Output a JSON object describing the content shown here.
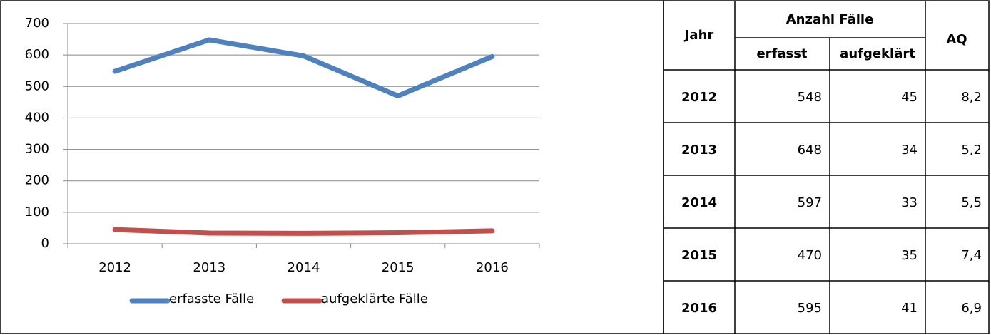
{
  "chart_data": {
    "type": "line",
    "categories": [
      "2012",
      "2013",
      "2014",
      "2015",
      "2016"
    ],
    "series": [
      {
        "name": "erfasste Fälle",
        "color": "#4f81bd",
        "values": [
          548,
          648,
          597,
          470,
          595
        ]
      },
      {
        "name": "aufgeklärte Fälle",
        "color": "#c0504d",
        "values": [
          45,
          34,
          33,
          35,
          41
        ]
      }
    ],
    "ylim": [
      0,
      700
    ],
    "yticks": [
      0,
      100,
      200,
      300,
      400,
      500,
      600,
      700
    ],
    "grid": true,
    "legend": "bottom"
  },
  "table": {
    "header": {
      "year": "Jahr",
      "group": "Anzahl Fälle",
      "cols": [
        "erfasst",
        "aufgeklärt"
      ],
      "aq": "AQ"
    },
    "rows": [
      [
        "2012",
        "548",
        "45",
        "8,2"
      ],
      [
        "2013",
        "648",
        "34",
        "5,2"
      ],
      [
        "2014",
        "597",
        "33",
        "5,5"
      ],
      [
        "2015",
        "470",
        "35",
        "7,4"
      ],
      [
        "2016",
        "595",
        "41",
        "6,9"
      ]
    ]
  }
}
